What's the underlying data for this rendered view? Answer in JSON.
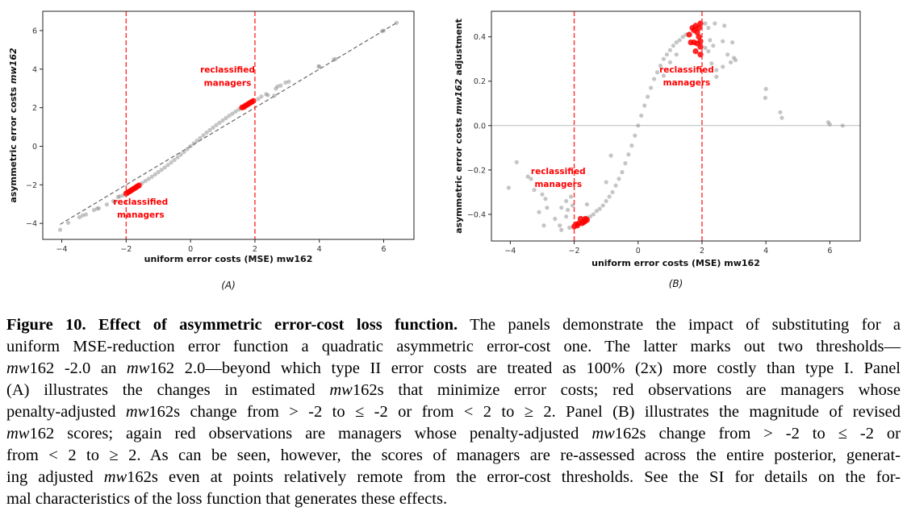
{
  "chart_data": [
    {
      "panel": "(A)",
      "type": "scatter",
      "xlabel": "uniform error costs (MSE) mw162",
      "ylabel_parts": [
        {
          "t": "asymmetric error costs ",
          "i": false
        },
        {
          "t": "mw162",
          "i": true
        }
      ],
      "xlim": [
        -4.59,
        6.94
      ],
      "ylim": [
        -4.83,
        7.0
      ],
      "xticks": [
        -4,
        -2,
        0,
        2,
        4,
        6
      ],
      "yticks": [
        -4,
        -2,
        0,
        2,
        4,
        6
      ],
      "threshold_lines_x": [
        -2,
        2
      ],
      "reference_line": {
        "type": "y=x",
        "x": [
          -4.05,
          6.4
        ],
        "style": "dashed"
      },
      "colors": {
        "gray": "#8c8c8c",
        "red": "#ff0000",
        "threshold": "#ff3030"
      },
      "annotations": [
        {
          "lines": [
            "reclassified",
            "managers"
          ],
          "x": 1.15,
          "y": [
            4.0,
            3.3
          ]
        },
        {
          "lines": [
            "reclassified",
            "managers"
          ],
          "x": -1.55,
          "y": [
            -2.87,
            -3.53
          ]
        }
      ],
      "series": [
        {
          "name": "managers",
          "color": "#8c8c8c",
          "points": [
            [
              -1.7,
              -2.12
            ],
            [
              -1.6,
              -2.02
            ],
            [
              -1.5,
              -1.91
            ],
            [
              -1.4,
              -1.8
            ],
            [
              -1.3,
              -1.69
            ],
            [
              -1.2,
              -1.58
            ],
            [
              -1.1,
              -1.46
            ],
            [
              -1.0,
              -1.34
            ],
            [
              -0.9,
              -1.22
            ],
            [
              -0.8,
              -1.1
            ],
            [
              -0.7,
              -0.97
            ],
            [
              -0.6,
              -0.84
            ],
            [
              -0.5,
              -0.71
            ],
            [
              -0.4,
              -0.57
            ],
            [
              -0.3,
              -0.43
            ],
            [
              -0.2,
              -0.29
            ],
            [
              -0.1,
              -0.145
            ],
            [
              0,
              0
            ],
            [
              0.1,
              0.145
            ],
            [
              0.2,
              0.29
            ],
            [
              0.3,
              0.43
            ],
            [
              0.4,
              0.57
            ],
            [
              0.5,
              0.71
            ],
            [
              0.6,
              0.84
            ],
            [
              0.7,
              0.97
            ],
            [
              0.8,
              1.1
            ],
            [
              0.9,
              1.22
            ],
            [
              1.0,
              1.34
            ],
            [
              1.1,
              1.46
            ],
            [
              1.2,
              1.58
            ],
            [
              1.3,
              1.69
            ],
            [
              1.4,
              1.8
            ],
            [
              1.5,
              1.91
            ],
            [
              1.6,
              2.0
            ],
            [
              -4.05,
              -4.33
            ],
            [
              -3.8,
              -3.97
            ],
            [
              -3.45,
              -3.68
            ],
            [
              -3.35,
              -3.59
            ],
            [
              -3.25,
              -3.54
            ],
            [
              -3.0,
              -3.31
            ],
            [
              -2.9,
              -3.23
            ],
            [
              -2.85,
              -3.22
            ],
            [
              -2.6,
              -3.02
            ],
            [
              -2.4,
              -2.85
            ],
            [
              -2.35,
              -2.88
            ],
            [
              -2.25,
              -2.63
            ],
            [
              -2.2,
              -2.6
            ],
            [
              -2.1,
              -2.55
            ],
            [
              2.1,
              2.45
            ],
            [
              2.2,
              2.58
            ],
            [
              2.35,
              2.7
            ],
            [
              2.4,
              2.65
            ],
            [
              2.6,
              2.62
            ],
            [
              2.65,
              2.99
            ],
            [
              2.7,
              3.1
            ],
            [
              2.8,
              3.15
            ],
            [
              2.95,
              3.3
            ],
            [
              3.05,
              3.35
            ],
            [
              4.0,
              4.13
            ],
            [
              3.98,
              4.15
            ],
            [
              4.45,
              4.5
            ],
            [
              4.5,
              4.52
            ],
            [
              5.95,
              5.97
            ],
            [
              6.0,
              6.0
            ],
            [
              6.4,
              6.4
            ]
          ]
        },
        {
          "name": "reclassified managers",
          "color": "#ff0000",
          "points": [
            [
              -2.0,
              -2.45
            ],
            [
              -1.95,
              -2.4
            ],
            [
              -1.9,
              -2.35
            ],
            [
              -1.85,
              -2.3
            ],
            [
              -1.8,
              -2.24
            ],
            [
              -1.75,
              -2.19
            ],
            [
              -1.7,
              -2.14
            ],
            [
              -1.65,
              -2.08
            ],
            [
              -1.6,
              -2.03
            ],
            [
              1.6,
              2.01
            ],
            [
              1.65,
              2.03
            ],
            [
              1.7,
              2.1
            ],
            [
              1.75,
              2.14
            ],
            [
              1.8,
              2.2
            ],
            [
              1.85,
              2.25
            ],
            [
              1.9,
              2.3
            ],
            [
              1.95,
              2.35
            ]
          ]
        }
      ]
    },
    {
      "panel": "(B)",
      "type": "scatter",
      "xlabel": "uniform error costs (MSE) mw162",
      "ylabel_parts": [
        {
          "t": "asymmetric error costs ",
          "i": false
        },
        {
          "t": "mw162",
          "i": true
        },
        {
          "t": " adjustment",
          "i": false
        }
      ],
      "xlim": [
        -4.59,
        6.95
      ],
      "ylim": [
        -0.52,
        0.515
      ],
      "xticks": [
        -4,
        -2,
        0,
        2,
        4,
        6
      ],
      "yticks": [
        -0.4,
        -0.2,
        0.0,
        0.2,
        0.4
      ],
      "ytick_labels": [
        "−0.4",
        "−0.2",
        "0.0",
        "0.2",
        "0.4"
      ],
      "threshold_lines_x": [
        -2,
        2
      ],
      "reference_line": {
        "type": "y=0",
        "style": "solid"
      },
      "colors": {
        "gray": "#8c8c8c",
        "red": "#ff0000",
        "threshold": "#ff3030"
      },
      "annotations": [
        {
          "lines": [
            "reclassified",
            "managers"
          ],
          "x": 1.52,
          "y": [
            0.253,
            0.195
          ]
        },
        {
          "lines": [
            "reclassified",
            "managers"
          ],
          "x": -2.5,
          "y": [
            -0.204,
            -0.262
          ]
        }
      ],
      "series": [
        {
          "name": "managers",
          "color": "#8c8c8c",
          "points": [
            [
              -1.7,
              -0.42
            ],
            [
              -1.6,
              -0.415
            ],
            [
              -1.5,
              -0.41
            ],
            [
              -1.4,
              -0.4
            ],
            [
              -1.3,
              -0.385
            ],
            [
              -1.2,
              -0.375
            ],
            [
              -1.1,
              -0.36
            ],
            [
              -1.0,
              -0.34
            ],
            [
              -0.9,
              -0.32
            ],
            [
              -0.8,
              -0.3
            ],
            [
              -0.7,
              -0.27
            ],
            [
              -0.6,
              -0.24
            ],
            [
              -0.5,
              -0.21
            ],
            [
              -0.4,
              -0.17
            ],
            [
              -0.3,
              -0.13
            ],
            [
              -0.2,
              -0.09
            ],
            [
              -0.1,
              -0.045
            ],
            [
              0,
              0
            ],
            [
              0.1,
              0.045
            ],
            [
              0.2,
              0.09
            ],
            [
              0.3,
              0.13
            ],
            [
              0.4,
              0.17
            ],
            [
              0.5,
              0.21
            ],
            [
              0.6,
              0.24
            ],
            [
              0.7,
              0.27
            ],
            [
              0.8,
              0.3
            ],
            [
              0.9,
              0.32
            ],
            [
              1.0,
              0.34
            ],
            [
              1.1,
              0.36
            ],
            [
              1.2,
              0.375
            ],
            [
              1.3,
              0.385
            ],
            [
              1.4,
              0.4
            ],
            [
              1.5,
              0.41
            ],
            [
              -4.05,
              -0.28
            ],
            [
              -3.8,
              -0.165
            ],
            [
              -3.45,
              -0.23
            ],
            [
              -3.35,
              -0.24
            ],
            [
              -3.25,
              -0.29
            ],
            [
              -3.0,
              -0.31
            ],
            [
              -2.9,
              -0.33
            ],
            [
              -2.85,
              -0.37
            ],
            [
              -3.1,
              -0.39
            ],
            [
              -2.95,
              -0.45
            ],
            [
              -2.6,
              -0.42
            ],
            [
              -2.4,
              -0.37
            ],
            [
              -2.45,
              -0.45
            ],
            [
              -2.4,
              -0.47
            ],
            [
              -2.25,
              -0.34
            ],
            [
              -2.2,
              -0.38
            ],
            [
              -2.25,
              -0.41
            ],
            [
              -2.1,
              -0.32
            ],
            [
              -2.15,
              -0.46
            ],
            [
              -2.05,
              -0.36
            ],
            [
              -1.6,
              -0.355
            ],
            [
              -0.85,
              -0.135
            ],
            [
              -1.0,
              -0.255
            ],
            [
              2.1,
              0.46
            ],
            [
              2.4,
              0.46
            ],
            [
              2.2,
              0.44
            ],
            [
              2.7,
              0.45
            ],
            [
              2.25,
              0.385
            ],
            [
              2.65,
              0.38
            ],
            [
              2.95,
              0.375
            ],
            [
              2.35,
              0.36
            ],
            [
              2.1,
              0.35
            ],
            [
              2.2,
              0.335
            ],
            [
              2.8,
              0.32
            ],
            [
              3.0,
              0.305
            ],
            [
              3.05,
              0.295
            ],
            [
              2.9,
              0.285
            ],
            [
              2.3,
              0.28
            ],
            [
              2.65,
              0.265
            ],
            [
              2.45,
              0.25
            ],
            [
              2.45,
              0.22
            ],
            [
              1.2,
              0.32
            ],
            [
              1.0,
              0.285
            ],
            [
              0.8,
              0.225
            ],
            [
              4.0,
              0.165
            ],
            [
              3.98,
              0.125
            ],
            [
              4.45,
              0.06
            ],
            [
              4.5,
              0.035
            ],
            [
              5.95,
              0.015
            ],
            [
              6.0,
              0.005
            ],
            [
              6.4,
              0.0
            ]
          ]
        },
        {
          "name": "reclassified managers",
          "color": "#ff0000",
          "points": [
            [
              1.6,
              0.41
            ],
            [
              1.7,
              0.44
            ],
            [
              1.75,
              0.43
            ],
            [
              1.8,
              0.45
            ],
            [
              1.9,
              0.44
            ],
            [
              1.95,
              0.46
            ],
            [
              1.85,
              0.42
            ],
            [
              1.9,
              0.4
            ],
            [
              1.95,
              0.38
            ],
            [
              1.65,
              0.375
            ],
            [
              1.75,
              0.375
            ],
            [
              1.85,
              0.37
            ],
            [
              1.95,
              0.355
            ],
            [
              1.8,
              0.335
            ],
            [
              1.95,
              0.32
            ],
            [
              -2.0,
              -0.455
            ],
            [
              -1.95,
              -0.445
            ],
            [
              -1.9,
              -0.45
            ],
            [
              -1.85,
              -0.44
            ],
            [
              -1.8,
              -0.42
            ],
            [
              -1.75,
              -0.44
            ],
            [
              -1.7,
              -0.435
            ],
            [
              -1.65,
              -0.43
            ],
            [
              -1.6,
              -0.425
            ],
            [
              -1.65,
              -0.42
            ]
          ]
        }
      ]
    }
  ],
  "caption": {
    "lines": [
      [
        {
          "t": "Figure 10. Effect of asymmetric error-cost loss function.",
          "s": "b"
        },
        {
          "t": " The panels demonstrate the impact of substituting for a",
          "s": ""
        }
      ],
      [
        {
          "t": "uniform MSE-reduction error function a quadratic asymmetric error-cost one. The latter marks out two thresholds—",
          "s": ""
        }
      ],
      [
        {
          "t": "mw",
          "s": "i"
        },
        {
          "t": "162 -2.0 an ",
          "s": ""
        },
        {
          "t": "mw",
          "s": "i"
        },
        {
          "t": "162 2.0—beyond which type II error costs are treated as 100% (2x) more costly than type I. Panel",
          "s": ""
        }
      ],
      [
        {
          "t": "(A) illustrates the changes in estimated ",
          "s": ""
        },
        {
          "t": "mw",
          "s": "i"
        },
        {
          "t": "162s that minimize error costs; red observations are managers whose",
          "s": ""
        }
      ],
      [
        {
          "t": "penalty-adjusted ",
          "s": ""
        },
        {
          "t": "mw",
          "s": "i"
        },
        {
          "t": "162s change from > -2 to ≤ -2 or from < 2 to ≥ 2. Panel (B) illustrates the magnitude of revised",
          "s": ""
        }
      ],
      [
        {
          "t": "mw",
          "s": "i"
        },
        {
          "t": "162 scores; again red observations are managers whose penalty-adjusted ",
          "s": ""
        },
        {
          "t": "mw",
          "s": "i"
        },
        {
          "t": "162s change from > -2 to ≤ -2 or",
          "s": ""
        }
      ],
      [
        {
          "t": "from < 2 to ≥ 2. As can be seen, however, the scores of managers are re-assessed across the entire posterior, generat-",
          "s": ""
        }
      ],
      [
        {
          "t": "ing adjusted ",
          "s": ""
        },
        {
          "t": "mw",
          "s": "i"
        },
        {
          "t": "162s even at points relatively remote from the error-cost thresholds. See the SI for details on the for-",
          "s": ""
        }
      ],
      [
        {
          "t": "mal characteristics of the loss function that generates these effects.",
          "s": ""
        }
      ]
    ]
  }
}
